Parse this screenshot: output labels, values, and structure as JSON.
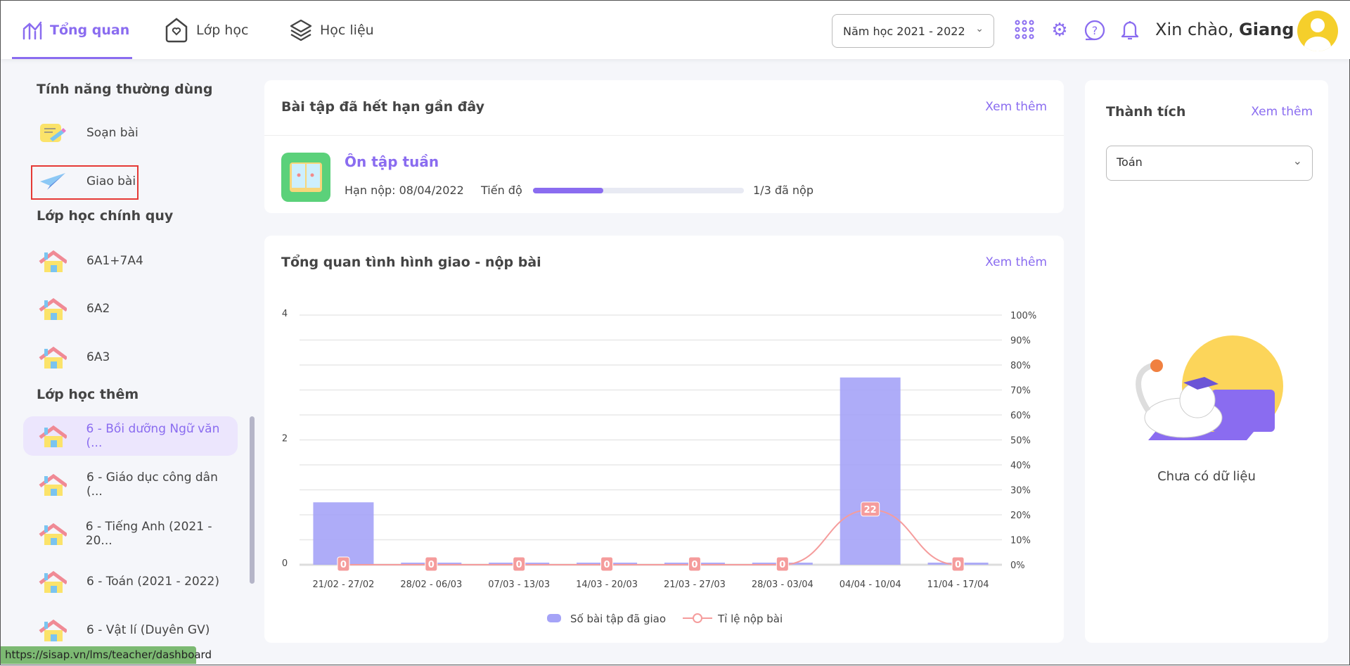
{
  "header": {
    "tabs": [
      {
        "label": "Tổng quan",
        "icon": "chart-icon"
      },
      {
        "label": "Lớp học",
        "icon": "home-heart-icon"
      },
      {
        "label": "Học liệu",
        "icon": "layers-icon"
      }
    ],
    "year_select": "Năm học 2021 - 2022",
    "greeting": "Xin chào,",
    "user": "Giang"
  },
  "sidebar": {
    "sections": {
      "common": "Tính năng thường dùng",
      "regular": "Lớp học chính quy",
      "extra": "Lớp học thêm"
    },
    "common_items": [
      "Soạn bài",
      "Giao bài"
    ],
    "regular_items": [
      "6A1+7A4",
      "6A2",
      "6A3"
    ],
    "extra_items": [
      "6 - Bồi dưỡng Ngữ văn (...",
      "6 - Giáo dục công dân (...",
      "6 - Tiếng Anh (2021 - 20...",
      "6 - Toán (2021 - 2022)",
      "6 - Vật lí (Duyên GV)"
    ]
  },
  "recent": {
    "title": "Bài tập đã hết hạn gần đây",
    "more": "Xem thêm",
    "item": {
      "name": "Ôn tập tuần",
      "deadline": "Hạn nộp: 08/04/2022",
      "progress_label": "Tiến độ",
      "progress": 0.333,
      "submitted": "1/3 đã nộp"
    }
  },
  "overview": {
    "title": "Tổng quan tình hình giao - nộp bài",
    "more": "Xem thêm"
  },
  "achievement": {
    "title": "Thành tích",
    "more": "Xem thêm",
    "subject": "Toán",
    "empty": "Chưa có dữ liệu"
  },
  "status_url": "https://sisap.vn/lms/teacher/dashboard",
  "chart_data": {
    "type": "bar",
    "categories": [
      "21/02 - 27/02",
      "28/02 - 06/03",
      "07/03 - 13/03",
      "14/03 - 20/03",
      "21/03 - 27/03",
      "28/03 - 03/04",
      "04/04 - 10/04",
      "11/04 - 17/04"
    ],
    "series": [
      {
        "name": "Số bài tập đã giao",
        "type": "bar",
        "axis": "left",
        "values": [
          1,
          0,
          0,
          0,
          0,
          0,
          3,
          0
        ],
        "color": "#a5a3f7"
      },
      {
        "name": "Tỉ lệ nộp bài",
        "type": "line",
        "axis": "right",
        "values": [
          0,
          0,
          0,
          0,
          0,
          0,
          22,
          0
        ],
        "color": "#f59c9c"
      }
    ],
    "ylim_left": [
      0,
      4
    ],
    "yticks_left": [
      "0",
      "2",
      "4"
    ],
    "ylim_right": [
      0,
      100
    ],
    "yticks_right": [
      "0%",
      "10%",
      "20%",
      "30%",
      "40%",
      "50%",
      "60%",
      "70%",
      "80%",
      "90%",
      "100%"
    ],
    "legend": "bottom",
    "grid": true
  }
}
